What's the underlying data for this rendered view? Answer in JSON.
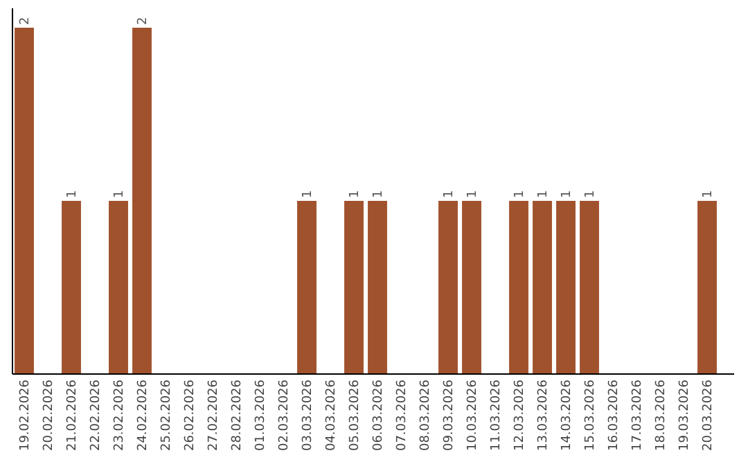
{
  "chart_data": {
    "type": "bar",
    "categories": [
      "19.02.2026",
      "20.02.2026",
      "21.02.2026",
      "22.02.2026",
      "23.02.2026",
      "24.02.2026",
      "25.02.2026",
      "26.02.2026",
      "27.02.2026",
      "28.02.2026",
      "01.03.2026",
      "02.03.2026",
      "03.03.2026",
      "04.03.2026",
      "05.03.2026",
      "06.03.2026",
      "07.03.2026",
      "08.03.2026",
      "09.03.2026",
      "10.03.2026",
      "11.03.2026",
      "12.03.2026",
      "13.03.2026",
      "14.03.2026",
      "15.03.2026",
      "16.03.2026",
      "17.03.2026",
      "18.03.2026",
      "19.03.2026",
      "20.03.2026"
    ],
    "values": [
      2,
      0,
      1,
      0,
      1,
      2,
      0,
      0,
      0,
      0,
      0,
      0,
      1,
      0,
      1,
      1,
      0,
      0,
      1,
      1,
      0,
      1,
      1,
      1,
      1,
      0,
      0,
      0,
      0,
      1
    ],
    "value_labels": [
      "2",
      null,
      "1",
      null,
      "1",
      "2",
      null,
      null,
      null,
      null,
      null,
      null,
      "1",
      null,
      "1",
      "1",
      null,
      null,
      "1",
      "1",
      null,
      "1",
      "1",
      "1",
      "1",
      null,
      null,
      null,
      null,
      "1"
    ],
    "color": "#a0522d",
    "grid": false
  }
}
